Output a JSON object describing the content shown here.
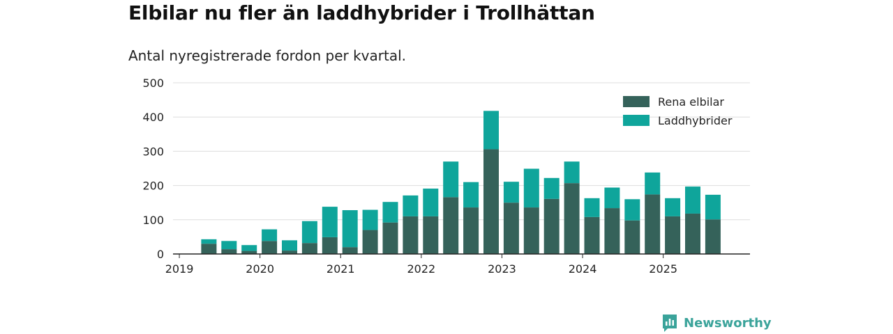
{
  "title": "Elbilar nu fler än laddhybrider i Trollhättan",
  "subtitle": "Antal nyregistrerade fordon per kvartal.",
  "brand": {
    "name": "Newsworthy"
  },
  "colors": {
    "electric": "#35625a",
    "hybrid": "#0fa59b",
    "grid": "#dddddd",
    "axis": "#222222"
  },
  "chart_data": {
    "type": "bar",
    "stacked": true,
    "title": "Elbilar nu fler än laddhybrider i Trollhättan",
    "subtitle": "Antal nyregistrerade fordon per kvartal.",
    "xlabel": "",
    "ylabel": "",
    "ylim": [
      0,
      500
    ],
    "yticks": [
      0,
      100,
      200,
      300,
      400,
      500
    ],
    "xtick_labels": [
      "2019",
      "2020",
      "2021",
      "2022",
      "2023",
      "2024",
      "2025"
    ],
    "legend_position": "top-right",
    "categories": [
      "2019 Q1",
      "2019 Q2",
      "2019 Q3",
      "2019 Q4",
      "2020 Q1",
      "2020 Q2",
      "2020 Q3",
      "2020 Q4",
      "2021 Q1",
      "2021 Q2",
      "2021 Q3",
      "2021 Q4",
      "2022 Q1",
      "2022 Q2",
      "2022 Q3",
      "2022 Q4",
      "2023 Q1",
      "2023 Q2",
      "2023 Q3",
      "2023 Q4",
      "2024 Q1",
      "2024 Q2",
      "2024 Q3",
      "2024 Q4",
      "2025 Q1",
      "2025 Q2",
      "2025 Q3"
    ],
    "series": [
      {
        "name": "Rena elbilar",
        "color": "#35625a",
        "values": [
          0,
          30,
          14,
          9,
          38,
          10,
          32,
          49,
          20,
          70,
          92,
          110,
          110,
          166,
          136,
          306,
          150,
          136,
          161,
          207,
          108,
          134,
          98,
          174,
          110,
          118,
          101
        ]
      },
      {
        "name": "Laddhybrider",
        "color": "#0fa59b",
        "values": [
          0,
          13,
          24,
          17,
          34,
          30,
          64,
          89,
          108,
          59,
          60,
          61,
          81,
          104,
          74,
          112,
          61,
          113,
          61,
          63,
          55,
          60,
          62,
          64,
          53,
          79,
          72
        ]
      }
    ]
  }
}
